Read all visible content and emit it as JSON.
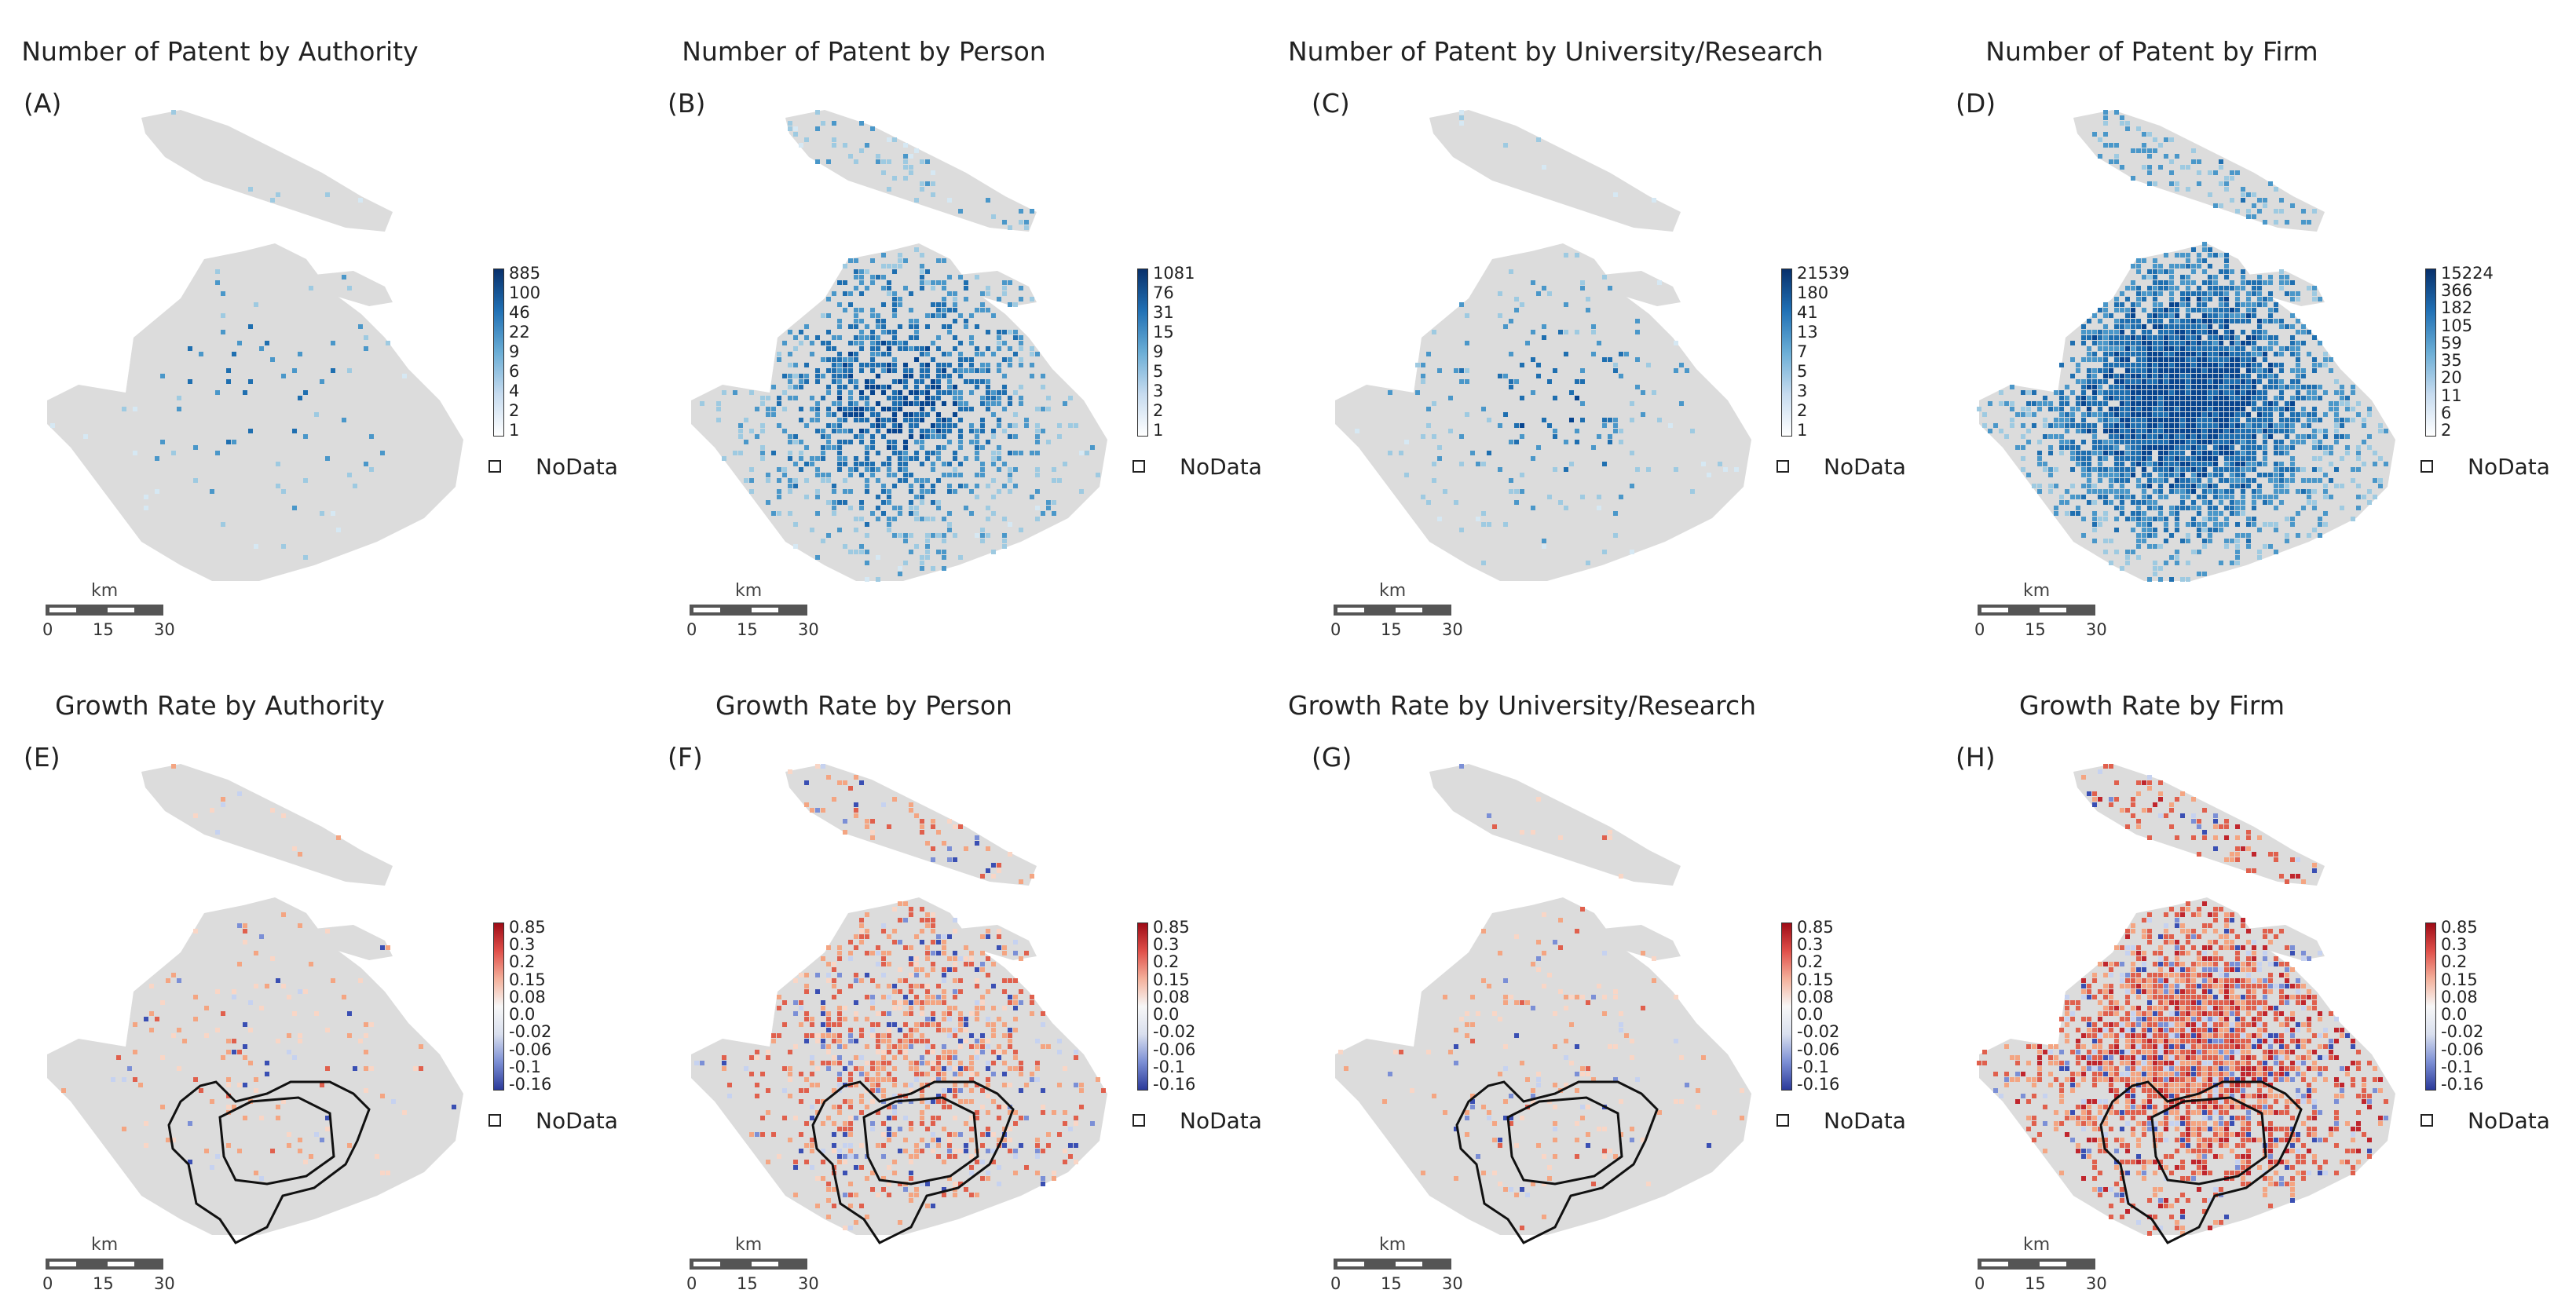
{
  "panels": [
    {
      "title": "Number of Patent by Authority",
      "label": "(A)",
      "kind": "count",
      "density": 0.03,
      "ticks": [
        "885",
        "100",
        "46",
        "22",
        "9",
        "6",
        "4",
        "2",
        "1"
      ],
      "nodata": "NoData"
    },
    {
      "title": "Number of Patent by Person",
      "label": "(B)",
      "kind": "count",
      "density": 0.38,
      "ticks": [
        "1081",
        "76",
        "31",
        "15",
        "9",
        "5",
        "3",
        "2",
        "1"
      ],
      "nodata": "NoData"
    },
    {
      "title": "Number of Patent by University/Research",
      "label": "(C)",
      "kind": "count",
      "density": 0.07,
      "ticks": [
        "21539",
        "180",
        "41",
        "13",
        "7",
        "5",
        "3",
        "2",
        "1"
      ],
      "nodata": "NoData"
    },
    {
      "title": "Number of Patent by Firm",
      "label": "(D)",
      "kind": "count",
      "density": 0.68,
      "ticks": [
        "15224",
        "366",
        "182",
        "105",
        "59",
        "35",
        "20",
        "11",
        "6",
        "2"
      ],
      "nodata": "NoData"
    },
    {
      "title": "Growth Rate by Authority",
      "label": "(E)",
      "kind": "growth",
      "density": 0.05,
      "ticks": [
        "0.85",
        "0.3",
        "0.2",
        "0.15",
        "0.08",
        "0.0",
        "-0.02",
        "-0.06",
        "-0.1",
        "-0.16"
      ],
      "nodata": "NoData"
    },
    {
      "title": "Growth Rate by Person",
      "label": "(F)",
      "kind": "growth",
      "density": 0.35,
      "ticks": [
        "0.85",
        "0.3",
        "0.2",
        "0.15",
        "0.08",
        "0.0",
        "-0.02",
        "-0.06",
        "-0.1",
        "-0.16"
      ],
      "nodata": "NoData"
    },
    {
      "title": "Growth Rate by University/Research",
      "label": "(G)",
      "kind": "growth",
      "density": 0.07,
      "ticks": [
        "0.85",
        "0.3",
        "0.2",
        "0.15",
        "0.08",
        "0.0",
        "-0.02",
        "-0.06",
        "-0.1",
        "-0.16"
      ],
      "nodata": "NoData"
    },
    {
      "title": "Growth Rate by Firm",
      "label": "(H)",
      "kind": "growth",
      "density": 0.62,
      "ticks": [
        "0.85",
        "0.3",
        "0.2",
        "0.15",
        "0.08",
        "0.0",
        "-0.02",
        "-0.06",
        "-0.1",
        "-0.16"
      ],
      "nodata": "NoData"
    }
  ],
  "scalebar": {
    "unit": "km",
    "ticks": [
      "0",
      "15",
      "30"
    ]
  },
  "colors": {
    "land": "#dcdcdc",
    "blue": [
      "#d6e8f3",
      "#9ecae1",
      "#4a97c9",
      "#1f6fb0",
      "#08458f"
    ],
    "red": [
      "#f9d6c6",
      "#f4a582",
      "#e0604d",
      "#c0262d",
      "#a50f15"
    ],
    "cool": [
      "#c6d2f0",
      "#7b8fd6",
      "#3a4fb3"
    ],
    "blueramp": "linear-gradient(to top,#ffffff,#c6dbef,#6baed6,#2171b5,#08306b)",
    "divramp": "linear-gradient(to top,#2b3a9a,#7c8fd5,#d9dfee,#f7f7f7,#f4b09b,#e0504a,#9e0b16)"
  }
}
